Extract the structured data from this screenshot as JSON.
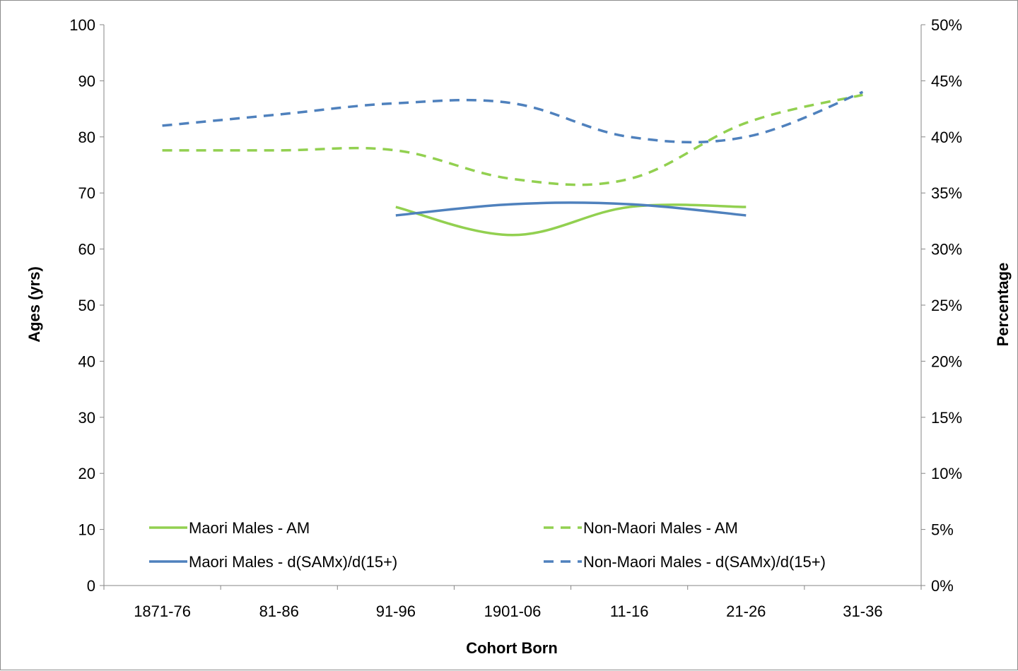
{
  "chart_data": {
    "type": "line",
    "categories": [
      "1871-76",
      "81-86",
      "91-96",
      "1901-06",
      "11-16",
      "21-26",
      "31-36"
    ],
    "xlabel": "Cohort Born",
    "ylabel": "Ages (yrs)",
    "y2label": "Percentage",
    "ylim": [
      0,
      100
    ],
    "yticks": [
      "0",
      "10",
      "20",
      "30",
      "40",
      "50",
      "60",
      "70",
      "80",
      "90",
      "100"
    ],
    "y2lim": [
      0,
      50
    ],
    "y2ticks": [
      "0%",
      "5%",
      "10%",
      "15%",
      "20%",
      "25%",
      "30%",
      "35%",
      "40%",
      "45%",
      "50%"
    ],
    "grid": false,
    "legend_position": "bottom",
    "series": [
      {
        "name": "Maori Males - AM",
        "axis": "left",
        "style": "solid",
        "color": "#92d050",
        "values": [
          null,
          null,
          67.5,
          62.5,
          67.5,
          67.5,
          null
        ]
      },
      {
        "name": "Non-Maori Males - AM",
        "axis": "left",
        "style": "dashed",
        "color": "#92d050",
        "values": [
          77.6,
          77.6,
          77.6,
          72.5,
          72.5,
          82.5,
          87.5
        ]
      },
      {
        "name": "Maori Males - d(SAMx)/d(15+)",
        "axis": "right",
        "style": "solid",
        "color": "#4f81bd",
        "values": [
          null,
          null,
          33,
          34,
          34,
          33,
          null
        ]
      },
      {
        "name": "Non-Maori Males - d(SAMx)/d(15+)",
        "axis": "right",
        "style": "dashed",
        "color": "#4f81bd",
        "values": [
          41,
          42,
          43,
          43,
          40,
          40,
          44
        ]
      }
    ]
  }
}
